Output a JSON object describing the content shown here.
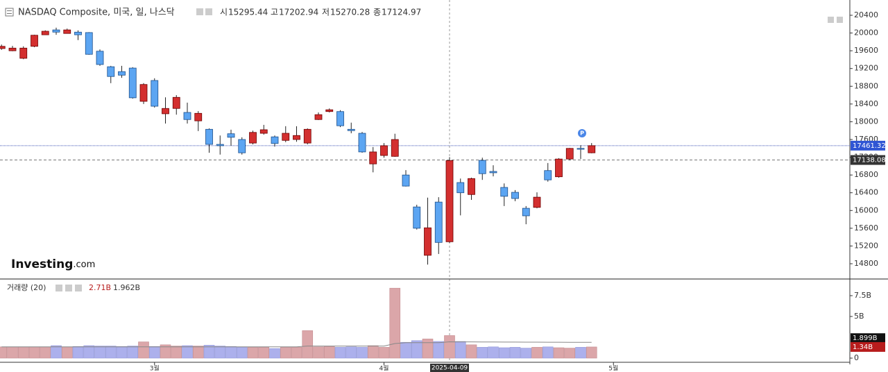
{
  "chart_data": [
    {
      "type": "candlestick",
      "title": "NASDAQ Composite, 미국, 일, 나스닥",
      "ohlc_labels": [
        "시",
        "고",
        "저",
        "종"
      ],
      "watermark": [
        "Investing",
        ".com"
      ],
      "annotation": "P",
      "categories": [
        null,
        null,
        null,
        null,
        null,
        null,
        null,
        null,
        null,
        null,
        null,
        null,
        null,
        null,
        "3월",
        null,
        null,
        null,
        null,
        null,
        null,
        null,
        null,
        null,
        null,
        null,
        null,
        null,
        null,
        null,
        null,
        null,
        null,
        null,
        null,
        "4월",
        null,
        null,
        null,
        null,
        null,
        null,
        null,
        null,
        null,
        null,
        null,
        null,
        null,
        null,
        null,
        null,
        null,
        null,
        null,
        null,
        "5월"
      ],
      "open": [
        19650,
        19600,
        19430,
        19700,
        19960,
        20070,
        19990,
        20020,
        20010,
        19590,
        19240,
        19130,
        19210,
        18460,
        18930,
        18180,
        18300,
        18210,
        18020,
        17830,
        17490,
        17730,
        17600,
        17520,
        17740,
        17660,
        17580,
        17600,
        17520,
        18050,
        18230,
        18230,
        17830,
        17740,
        17050,
        17240,
        17220,
        16800,
        16080,
        14990,
        16190,
        15295.44,
        16630,
        16360,
        17130,
        16880,
        16520,
        16410,
        16050,
        16070,
        16900,
        16760,
        17160,
        17400,
        17300,
        null,
        null
      ],
      "high": [
        19740,
        19710,
        19700,
        19960,
        20060,
        20120,
        20100,
        20060,
        20020,
        19630,
        19260,
        19260,
        19230,
        18870,
        18980,
        18550,
        18600,
        18430,
        18240,
        17850,
        17690,
        17820,
        17650,
        17800,
        17930,
        17690,
        17900,
        17900,
        17850,
        18210,
        18300,
        18260,
        17980,
        17770,
        17430,
        17520,
        17730,
        16910,
        16130,
        16290,
        16300,
        17202.94,
        16720,
        16740,
        17190,
        17020,
        16610,
        16460,
        16100,
        16410,
        17070,
        17180,
        17410,
        17470,
        17520,
        null,
        null
      ],
      "low": [
        19620,
        19590,
        19410,
        19680,
        19960,
        19960,
        19990,
        19840,
        19510,
        19260,
        18870,
        18990,
        18520,
        18400,
        18320,
        17960,
        18160,
        17960,
        17790,
        17300,
        17260,
        17460,
        17260,
        17490,
        17710,
        17440,
        17540,
        17550,
        17490,
        18040,
        18210,
        17880,
        17740,
        17300,
        16860,
        17190,
        17210,
        16540,
        15570,
        14780,
        15020,
        15270.28,
        15890,
        16240,
        16690,
        16770,
        16100,
        16210,
        15690,
        16050,
        16650,
        16740,
        17130,
        17160,
        17290,
        null,
        null
      ],
      "close": [
        19700,
        19660,
        19660,
        19950,
        20040,
        20020,
        20070,
        19960,
        19520,
        19290,
        19020,
        19050,
        18540,
        18840,
        18350,
        18300,
        18550,
        18050,
        18190,
        17490,
        17460,
        17650,
        17300,
        17760,
        17820,
        17510,
        17740,
        17690,
        17830,
        18160,
        18270,
        17910,
        17800,
        17320,
        17320,
        17460,
        17600,
        16550,
        15600,
        15610,
        15280,
        17124.97,
        16400,
        16720,
        16830,
        16850,
        16320,
        16270,
        15880,
        16300,
        16690,
        17160,
        17400,
        17380,
        17461.32,
        null,
        null
      ],
      "crosshair": {
        "date": "2025-04-09",
        "price": 17138.08
      },
      "up_color": "#d32f2f",
      "down_color": "#5ca5f2",
      "ylim": [
        14456,
        20744
      ],
      "yticks": [
        14800,
        15200,
        15600,
        16000,
        16400,
        16800,
        17200,
        17600,
        18000,
        18400,
        18800,
        19200,
        19600,
        20000,
        20400
      ]
    },
    {
      "type": "bar",
      "title": "거래량 (20)",
      "values": [
        1.35,
        1.35,
        1.35,
        1.35,
        1.35,
        1.5,
        1.35,
        1.4,
        1.5,
        1.45,
        1.45,
        1.4,
        1.45,
        1.95,
        1.4,
        1.6,
        1.45,
        1.5,
        1.45,
        1.55,
        1.45,
        1.4,
        1.3,
        1.3,
        1.3,
        1.15,
        1.3,
        1.3,
        3.3,
        1.35,
        1.4,
        1.3,
        1.35,
        1.3,
        1.5,
        1.3,
        8.4,
        1.9,
        2.1,
        2.3,
        2.0,
        2.71,
        2.0,
        1.6,
        1.3,
        1.35,
        1.25,
        1.3,
        1.2,
        1.3,
        1.35,
        1.25,
        1.2,
        1.3,
        1.34,
        null,
        null
      ],
      "value_labels": [
        null,
        null,
        null,
        null,
        null,
        null,
        null,
        null,
        null,
        null,
        null,
        null,
        null,
        null,
        null,
        null,
        null,
        null,
        null,
        null,
        null,
        null,
        null,
        null,
        null,
        null,
        null,
        null,
        null,
        null,
        null,
        null,
        null,
        null,
        null,
        null,
        null,
        null,
        null,
        null,
        null,
        "2.71B",
        null,
        null,
        null,
        null,
        null,
        null,
        null,
        null,
        null,
        null,
        null,
        null,
        "1.34B",
        null,
        null
      ],
      "ma": {
        "values": [
          1.35,
          1.35,
          1.35,
          1.35,
          1.35,
          1.35,
          1.35,
          1.35,
          1.35,
          1.35,
          1.35,
          1.35,
          1.35,
          1.35,
          1.35,
          1.35,
          1.35,
          1.35,
          1.35,
          1.35,
          1.35,
          1.35,
          1.35,
          1.35,
          1.35,
          1.35,
          1.35,
          1.35,
          1.45,
          1.45,
          1.45,
          1.45,
          1.45,
          1.45,
          1.45,
          1.45,
          1.75,
          1.85,
          1.85,
          1.85,
          1.85,
          1.962,
          1.95,
          1.95,
          1.94,
          1.94,
          1.93,
          1.93,
          1.92,
          1.92,
          1.91,
          1.91,
          1.9,
          1.9,
          1.899,
          null,
          null
        ],
        "value_labels": [
          null,
          null,
          null,
          null,
          null,
          null,
          null,
          null,
          null,
          null,
          null,
          null,
          null,
          null,
          null,
          null,
          null,
          null,
          null,
          null,
          null,
          null,
          null,
          null,
          null,
          null,
          null,
          null,
          null,
          null,
          null,
          null,
          null,
          null,
          null,
          null,
          null,
          null,
          null,
          null,
          null,
          "1.962B",
          null,
          null,
          null,
          null,
          null,
          null,
          null,
          null,
          null,
          null,
          null,
          null,
          "1.899B",
          null,
          null
        ],
        "color": "#888888"
      },
      "up_color": "#dba6a9",
      "down_color": "#acb0ec",
      "ylim": [
        -0.75,
        9.5
      ],
      "yticks": [
        0,
        {
          "value": 5,
          "label": "5B"
        },
        {
          "value": 7.5,
          "label": "7.5B"
        }
      ]
    }
  ]
}
